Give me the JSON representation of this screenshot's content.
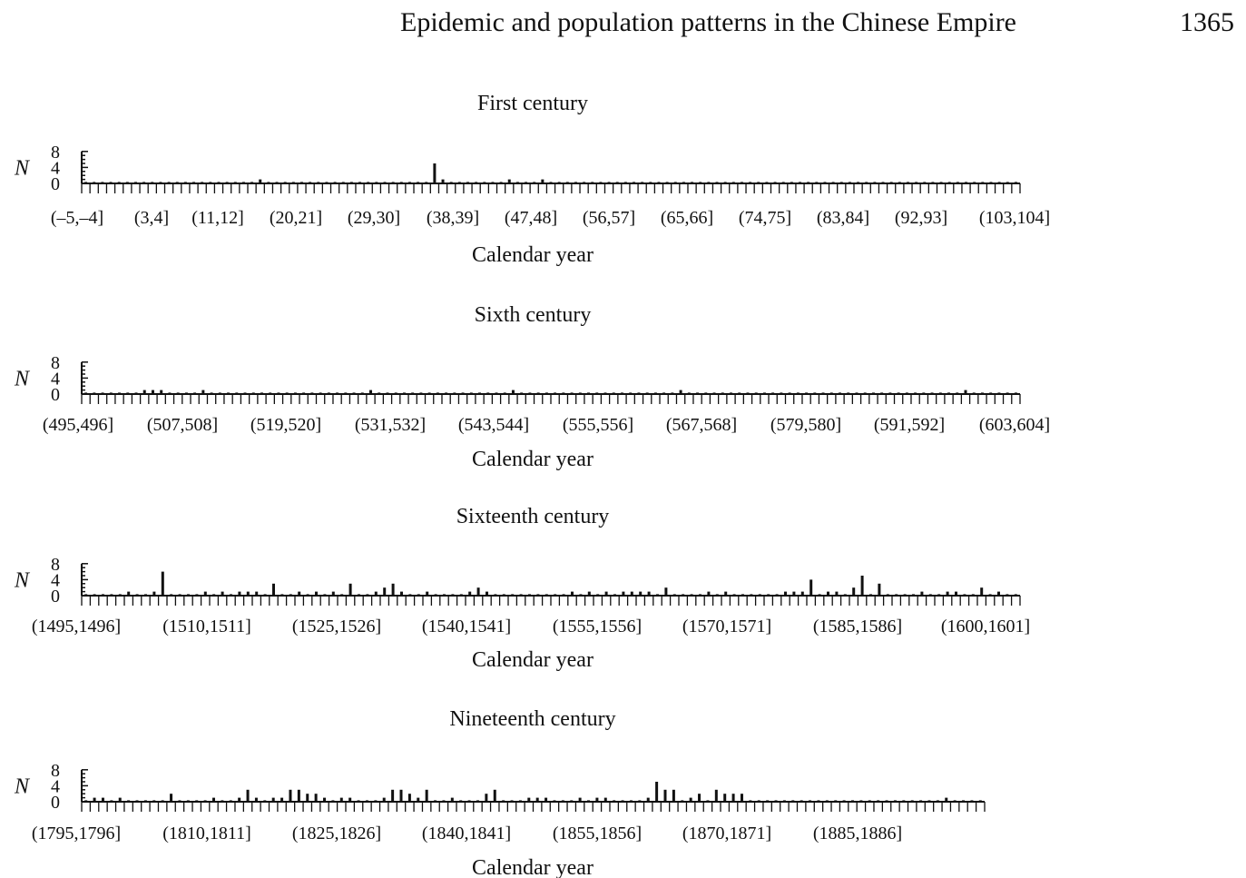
{
  "header": {
    "running_title": "Epidemic and population patterns in the Chinese Empire",
    "page_number": "1365"
  },
  "chart_data": [
    {
      "type": "bar",
      "title": "First century",
      "xlabel": "Calendar year",
      "ylabel": "N",
      "ylim": [
        0,
        8
      ],
      "yticks": [
        0,
        4,
        8
      ],
      "x_start": -5,
      "x_end": 108,
      "tick_labels": [
        "(–5,–4]",
        "(3,4]",
        "(11,12]",
        "(20,21]",
        "(29,30]",
        "(38,39]",
        "(47,48]",
        "(56,57]",
        "(65,66]",
        "(74,75]",
        "(83,84]",
        "(92,93]",
        "(103,104]"
      ],
      "nonzero": [
        {
          "x": 16,
          "y": 1
        },
        {
          "x": 37,
          "y": 5
        },
        {
          "x": 38,
          "y": 1
        },
        {
          "x": 46,
          "y": 1
        },
        {
          "x": 50,
          "y": 1
        }
      ]
    },
    {
      "type": "bar",
      "title": "Sixth century",
      "xlabel": "Calendar year",
      "ylabel": "N",
      "ylim": [
        0,
        8
      ],
      "yticks": [
        0,
        4,
        8
      ],
      "x_start": 495,
      "x_end": 607,
      "tick_labels": [
        "(495,496]",
        "(507,508]",
        "(519,520]",
        "(531,532]",
        "(543,544]",
        "(555,556]",
        "(567,568]",
        "(579,580]",
        "(591,592]",
        "(603,604]"
      ],
      "nonzero": [
        {
          "x": 502,
          "y": 1
        },
        {
          "x": 503,
          "y": 1
        },
        {
          "x": 504,
          "y": 1
        },
        {
          "x": 509,
          "y": 1
        },
        {
          "x": 529,
          "y": 1
        },
        {
          "x": 546,
          "y": 1
        },
        {
          "x": 566,
          "y": 1
        },
        {
          "x": 600,
          "y": 1
        }
      ]
    },
    {
      "type": "bar",
      "title": "Sixteenth century",
      "xlabel": "Calendar year",
      "ylabel": "N",
      "ylim": [
        0,
        8
      ],
      "yticks": [
        0,
        4,
        8
      ],
      "x_start": 1495,
      "x_end": 1605,
      "tick_labels": [
        "(1495,1496]",
        "(1510,1511]",
        "(1525,1526]",
        "(1540,1541]",
        "(1555,1556]",
        "(1570,1571]",
        "(1585,1586]",
        "(1600,1601]"
      ],
      "nonzero": [
        {
          "x": 1500,
          "y": 1
        },
        {
          "x": 1503,
          "y": 1
        },
        {
          "x": 1504,
          "y": 6
        },
        {
          "x": 1509,
          "y": 1
        },
        {
          "x": 1511,
          "y": 1
        },
        {
          "x": 1513,
          "y": 1
        },
        {
          "x": 1514,
          "y": 1
        },
        {
          "x": 1515,
          "y": 1
        },
        {
          "x": 1517,
          "y": 3
        },
        {
          "x": 1520,
          "y": 1
        },
        {
          "x": 1522,
          "y": 1
        },
        {
          "x": 1524,
          "y": 1
        },
        {
          "x": 1526,
          "y": 3
        },
        {
          "x": 1529,
          "y": 1
        },
        {
          "x": 1530,
          "y": 2
        },
        {
          "x": 1531,
          "y": 3
        },
        {
          "x": 1532,
          "y": 1
        },
        {
          "x": 1535,
          "y": 1
        },
        {
          "x": 1540,
          "y": 1
        },
        {
          "x": 1541,
          "y": 2
        },
        {
          "x": 1542,
          "y": 1
        },
        {
          "x": 1552,
          "y": 1
        },
        {
          "x": 1554,
          "y": 1
        },
        {
          "x": 1556,
          "y": 1
        },
        {
          "x": 1558,
          "y": 1
        },
        {
          "x": 1559,
          "y": 1
        },
        {
          "x": 1560,
          "y": 1
        },
        {
          "x": 1561,
          "y": 1
        },
        {
          "x": 1563,
          "y": 2
        },
        {
          "x": 1568,
          "y": 1
        },
        {
          "x": 1570,
          "y": 1
        },
        {
          "x": 1577,
          "y": 1
        },
        {
          "x": 1578,
          "y": 1
        },
        {
          "x": 1579,
          "y": 1
        },
        {
          "x": 1580,
          "y": 4
        },
        {
          "x": 1582,
          "y": 1
        },
        {
          "x": 1583,
          "y": 1
        },
        {
          "x": 1585,
          "y": 2
        },
        {
          "x": 1586,
          "y": 5
        },
        {
          "x": 1588,
          "y": 3
        },
        {
          "x": 1593,
          "y": 1
        },
        {
          "x": 1596,
          "y": 1
        },
        {
          "x": 1597,
          "y": 1
        },
        {
          "x": 1600,
          "y": 2
        },
        {
          "x": 1602,
          "y": 1
        }
      ]
    },
    {
      "type": "bar",
      "title": "Nineteenth century",
      "xlabel": "Calendar year",
      "ylabel": "N",
      "ylim": [
        0,
        8
      ],
      "yticks": [
        0,
        4,
        8
      ],
      "x_start": 1795,
      "x_end": 1901,
      "tick_labels": [
        "(1795,1796]",
        "(1810,1811]",
        "(1825,1826]",
        "(1840,1841]",
        "(1855,1856]",
        "(1870,1871]",
        "(1885,1886]"
      ],
      "nonzero": [
        {
          "x": 1796,
          "y": 1
        },
        {
          "x": 1797,
          "y": 1
        },
        {
          "x": 1799,
          "y": 1
        },
        {
          "x": 1805,
          "y": 2
        },
        {
          "x": 1810,
          "y": 1
        },
        {
          "x": 1813,
          "y": 1
        },
        {
          "x": 1814,
          "y": 3
        },
        {
          "x": 1815,
          "y": 1
        },
        {
          "x": 1817,
          "y": 1
        },
        {
          "x": 1818,
          "y": 1
        },
        {
          "x": 1819,
          "y": 3
        },
        {
          "x": 1820,
          "y": 3
        },
        {
          "x": 1821,
          "y": 2
        },
        {
          "x": 1822,
          "y": 2
        },
        {
          "x": 1823,
          "y": 1
        },
        {
          "x": 1825,
          "y": 1
        },
        {
          "x": 1826,
          "y": 1
        },
        {
          "x": 1830,
          "y": 1
        },
        {
          "x": 1831,
          "y": 3
        },
        {
          "x": 1832,
          "y": 3
        },
        {
          "x": 1833,
          "y": 2
        },
        {
          "x": 1834,
          "y": 1
        },
        {
          "x": 1835,
          "y": 3
        },
        {
          "x": 1838,
          "y": 1
        },
        {
          "x": 1842,
          "y": 2
        },
        {
          "x": 1843,
          "y": 3
        },
        {
          "x": 1847,
          "y": 1
        },
        {
          "x": 1848,
          "y": 1
        },
        {
          "x": 1849,
          "y": 1
        },
        {
          "x": 1853,
          "y": 1
        },
        {
          "x": 1855,
          "y": 1
        },
        {
          "x": 1856,
          "y": 1
        },
        {
          "x": 1861,
          "y": 1
        },
        {
          "x": 1862,
          "y": 5
        },
        {
          "x": 1863,
          "y": 3
        },
        {
          "x": 1864,
          "y": 3
        },
        {
          "x": 1866,
          "y": 1
        },
        {
          "x": 1867,
          "y": 2
        },
        {
          "x": 1869,
          "y": 3
        },
        {
          "x": 1870,
          "y": 2
        },
        {
          "x": 1871,
          "y": 2
        },
        {
          "x": 1872,
          "y": 2
        },
        {
          "x": 1896,
          "y": 1
        }
      ]
    }
  ]
}
